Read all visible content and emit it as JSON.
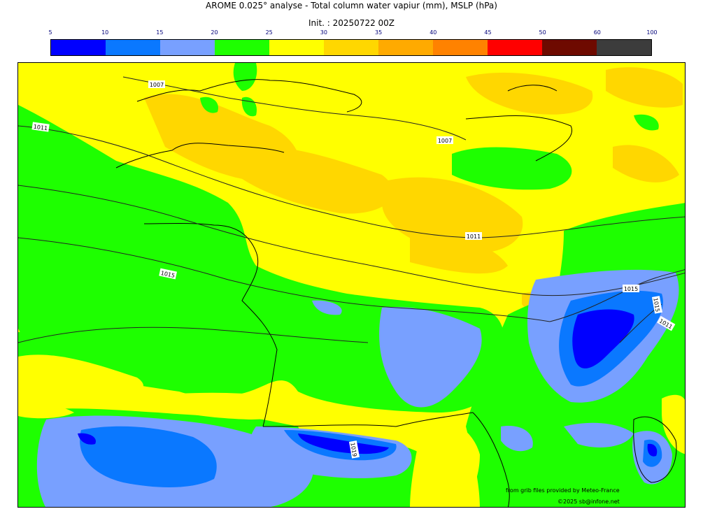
{
  "header": {
    "title": "AROME 0.025° analyse - Total column water vapiur (mm), MSLP (hPa)",
    "init": "Init. : 20250722 00Z"
  },
  "colorbar": {
    "ticks": [
      "5",
      "10",
      "15",
      "20",
      "25",
      "30",
      "35",
      "40",
      "45",
      "50",
      "60",
      "100"
    ],
    "colors": [
      "#0000ff",
      "#0a78ff",
      "#78a0ff",
      "#1eff00",
      "#ffff00",
      "#ffd700",
      "#ffaa00",
      "#ff8200",
      "#ff0000",
      "#6e0a00",
      "#3c3c3c"
    ]
  },
  "map": {
    "isobar_labels": [
      "1007",
      "1011",
      "1007",
      "1011",
      "1015",
      "1015",
      "1019",
      "1015",
      "1011"
    ]
  },
  "credits": {
    "source": "from grib files provided by Meteo-France",
    "copyright": "©2025 sb@infone.net"
  }
}
